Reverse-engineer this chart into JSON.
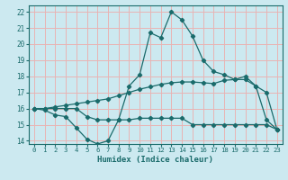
{
  "xlabel": "Humidex (Indice chaleur)",
  "xlim": [
    -0.5,
    23.5
  ],
  "ylim": [
    13.8,
    22.4
  ],
  "yticks": [
    14,
    15,
    16,
    17,
    18,
    19,
    20,
    21,
    22
  ],
  "xticks": [
    0,
    1,
    2,
    3,
    4,
    5,
    6,
    7,
    8,
    9,
    10,
    11,
    12,
    13,
    14,
    15,
    16,
    17,
    18,
    19,
    20,
    21,
    22,
    23
  ],
  "background_color": "#cce9f0",
  "grid_color": "#e8b4b4",
  "line_color": "#1a6b6b",
  "line1_x": [
    0,
    1,
    2,
    3,
    4,
    5,
    6,
    7,
    8,
    9,
    10,
    11,
    12,
    13,
    14,
    15,
    16,
    17,
    18,
    19,
    20,
    21,
    22,
    23
  ],
  "line1_y": [
    16.0,
    15.9,
    15.6,
    15.5,
    14.8,
    14.1,
    13.8,
    14.0,
    15.3,
    17.4,
    18.1,
    20.7,
    20.4,
    22.0,
    21.5,
    20.5,
    19.0,
    18.3,
    18.1,
    17.8,
    18.0,
    17.4,
    15.3,
    14.7
  ],
  "line2_x": [
    0,
    1,
    2,
    3,
    4,
    5,
    6,
    7,
    8,
    9,
    10,
    11,
    12,
    13,
    14,
    15,
    16,
    17,
    18,
    19,
    20,
    21,
    22,
    23
  ],
  "line2_y": [
    16.0,
    16.0,
    16.0,
    16.0,
    16.0,
    15.5,
    15.3,
    15.3,
    15.3,
    15.3,
    15.4,
    15.4,
    15.4,
    15.4,
    15.4,
    15.0,
    15.0,
    15.0,
    15.0,
    15.0,
    15.0,
    15.0,
    15.0,
    14.7
  ],
  "line3_x": [
    0,
    1,
    2,
    3,
    4,
    5,
    6,
    7,
    8,
    9,
    10,
    11,
    12,
    13,
    14,
    15,
    16,
    17,
    18,
    19,
    20,
    21,
    22,
    23
  ],
  "line3_y": [
    16.0,
    16.0,
    16.1,
    16.2,
    16.3,
    16.4,
    16.5,
    16.6,
    16.8,
    17.0,
    17.2,
    17.35,
    17.5,
    17.6,
    17.65,
    17.65,
    17.6,
    17.55,
    17.75,
    17.8,
    17.8,
    17.4,
    17.0,
    14.7
  ]
}
